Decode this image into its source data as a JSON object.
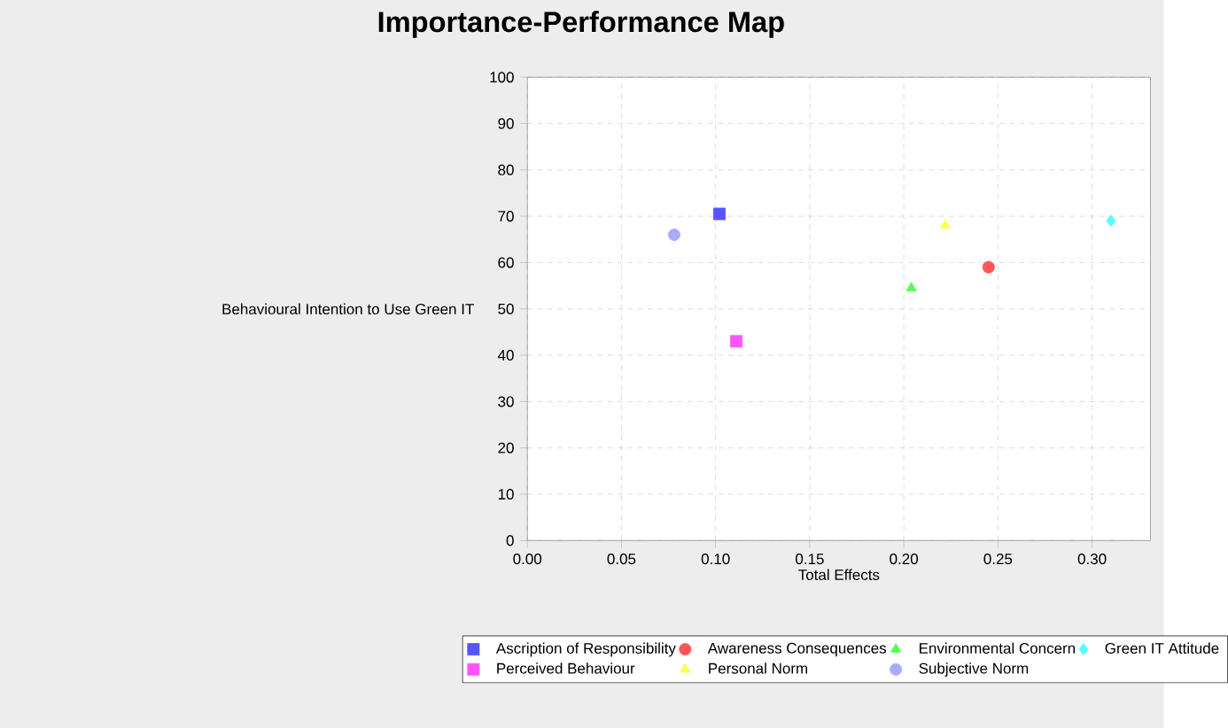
{
  "chart_data": {
    "type": "scatter",
    "title": "Importance-Performance Map",
    "xlabel": "Total Effects",
    "ylabel": "Behavioural Intention to Use Green IT",
    "xlim": [
      0,
      0.331
    ],
    "ylim": [
      0,
      100
    ],
    "xticks": [
      {
        "value": 0,
        "label": "0.00"
      },
      {
        "value": 0.05,
        "label": "0.05"
      },
      {
        "value": 0.1,
        "label": "0.10"
      },
      {
        "value": 0.15,
        "label": "0.15"
      },
      {
        "value": 0.2,
        "label": "0.20"
      },
      {
        "value": 0.25,
        "label": "0.25"
      },
      {
        "value": 0.3,
        "label": "0.30"
      }
    ],
    "yticks": [
      0,
      10,
      20,
      30,
      40,
      50,
      60,
      70,
      80,
      90,
      100
    ],
    "grid": true,
    "legend": "bottom",
    "series": [
      {
        "name": "Ascription of Responsibility",
        "color": "#5555ff",
        "marker": "square",
        "x": [
          0.102
        ],
        "values": [
          70.5
        ]
      },
      {
        "name": "Awareness Consequences",
        "color": "#ff5555",
        "marker": "circle",
        "x": [
          0.245
        ],
        "values": [
          59
        ]
      },
      {
        "name": "Environmental Concern",
        "color": "#55ff55",
        "marker": "triangle",
        "x": [
          0.204
        ],
        "values": [
          54.5
        ]
      },
      {
        "name": "Green IT Attitude",
        "color": "#55ffff",
        "marker": "diamond",
        "x": [
          0.31
        ],
        "values": [
          69
        ]
      },
      {
        "name": "Perceived Behaviour",
        "color": "#ff55ff",
        "marker": "square",
        "x": [
          0.111
        ],
        "values": [
          43
        ]
      },
      {
        "name": "Personal Norm",
        "color": "#ffff55",
        "marker": "triangle",
        "x": [
          0.222
        ],
        "values": [
          68
        ]
      },
      {
        "name": "Subjective Norm",
        "color": "#aaaaff",
        "marker": "circle",
        "x": [
          0.078
        ],
        "values": [
          66
        ]
      }
    ]
  }
}
